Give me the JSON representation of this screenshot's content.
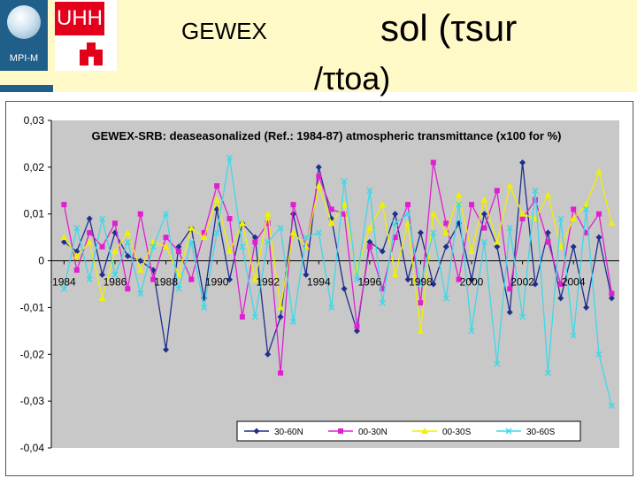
{
  "header": {
    "title": "GEWEX",
    "formula_line1": "sol (τsur",
    "formula_line2": "/τtoa)",
    "logo_left_label": "MPI-M",
    "logo_right_label": "UHH"
  },
  "chart_data": {
    "type": "line",
    "title": "GEWEX-SRB: deaseasonalized (Ref.: 1984-87) atmospheric transmittance (x100 for %)",
    "xlabel": "",
    "ylabel": "",
    "ylim": [
      -0.04,
      0.03
    ],
    "yticks": [
      "0,03",
      "0,02",
      "0,01",
      "0",
      "-0,01",
      "-0,02",
      "-0,03",
      "-0,04"
    ],
    "ytick_values": [
      0.03,
      0.02,
      0.01,
      0,
      -0.01,
      -0.02,
      -0.03,
      -0.04
    ],
    "xticks": [
      "1984",
      "1986",
      "1988",
      "1990",
      "1992",
      "1994",
      "1996",
      "1998",
      "2000",
      "2002",
      "2004"
    ],
    "xtick_values": [
      1984,
      1986,
      1988,
      1990,
      1992,
      1994,
      1996,
      1998,
      2000,
      2002,
      2004
    ],
    "xlim": [
      1983.5,
      2005.8
    ],
    "grid": false,
    "legend_position": "bottom",
    "series": [
      {
        "name": "30-60N",
        "color": "#1f2f8f",
        "marker": "diamond",
        "x": [
          1984.0,
          1984.5,
          1985.0,
          1985.5,
          1986.0,
          1986.5,
          1987.0,
          1987.5,
          1988.0,
          1988.5,
          1989.0,
          1989.5,
          1990.0,
          1990.5,
          1991.0,
          1991.5,
          1992.0,
          1992.5,
          1993.0,
          1993.5,
          1994.0,
          1994.5,
          1995.0,
          1995.5,
          1996.0,
          1996.5,
          1997.0,
          1997.5,
          1998.0,
          1998.5,
          1999.0,
          1999.5,
          2000.0,
          2000.5,
          2001.0,
          2001.5,
          2002.0,
          2002.5,
          2003.0,
          2003.5,
          2004.0,
          2004.5,
          2005.0,
          2005.5
        ],
        "y": [
          0.004,
          0.002,
          0.009,
          -0.003,
          0.006,
          0.001,
          0.0,
          -0.002,
          -0.019,
          0.003,
          0.007,
          -0.008,
          0.011,
          -0.004,
          0.008,
          0.005,
          -0.02,
          -0.012,
          0.01,
          -0.003,
          0.02,
          0.009,
          -0.006,
          -0.015,
          0.004,
          0.002,
          0.01,
          -0.004,
          0.006,
          -0.005,
          0.003,
          0.008,
          -0.004,
          0.01,
          0.003,
          -0.011,
          0.021,
          -0.005,
          0.006,
          -0.008,
          0.003,
          -0.01,
          0.005,
          -0.008
        ]
      },
      {
        "name": "00-30N",
        "color": "#e020d0",
        "marker": "square",
        "x": [
          1984.0,
          1984.5,
          1985.0,
          1985.5,
          1986.0,
          1986.5,
          1987.0,
          1987.5,
          1988.0,
          1988.5,
          1989.0,
          1989.5,
          1990.0,
          1990.5,
          1991.0,
          1991.5,
          1992.0,
          1992.5,
          1993.0,
          1993.5,
          1994.0,
          1994.5,
          1995.0,
          1995.5,
          1996.0,
          1996.5,
          1997.0,
          1997.5,
          1998.0,
          1998.5,
          1999.0,
          1999.5,
          2000.0,
          2000.5,
          2001.0,
          2001.5,
          2002.0,
          2002.5,
          2003.0,
          2003.5,
          2004.0,
          2004.5,
          2005.0,
          2005.5
        ],
        "y": [
          0.012,
          -0.002,
          0.006,
          0.003,
          0.008,
          -0.006,
          0.01,
          -0.004,
          0.005,
          0.002,
          -0.004,
          0.006,
          0.016,
          0.009,
          -0.012,
          0.004,
          0.008,
          -0.024,
          0.012,
          0.003,
          0.018,
          0.011,
          0.01,
          -0.014,
          0.003,
          -0.006,
          0.005,
          0.012,
          -0.009,
          0.021,
          0.008,
          -0.004,
          0.012,
          0.007,
          0.015,
          -0.006,
          0.009,
          0.013,
          0.004,
          -0.005,
          0.011,
          0.006,
          0.01,
          -0.007
        ]
      },
      {
        "name": "00-30S",
        "color": "#f0f000",
        "marker": "triangle",
        "x": [
          1984.0,
          1984.5,
          1985.0,
          1985.5,
          1986.0,
          1986.5,
          1987.0,
          1987.5,
          1988.0,
          1988.5,
          1989.0,
          1989.5,
          1990.0,
          1990.5,
          1991.0,
          1991.5,
          1992.0,
          1992.5,
          1993.0,
          1993.5,
          1994.0,
          1994.5,
          1995.0,
          1995.5,
          1996.0,
          1996.5,
          1997.0,
          1997.5,
          1998.0,
          1998.5,
          1999.0,
          1999.5,
          2000.0,
          2000.5,
          2001.0,
          2001.5,
          2002.0,
          2002.5,
          2003.0,
          2003.5,
          2004.0,
          2004.5,
          2005.0,
          2005.5
        ],
        "y": [
          0.005,
          0.001,
          0.004,
          -0.008,
          0.002,
          0.006,
          -0.002,
          0.004,
          0.003,
          -0.003,
          0.007,
          0.005,
          0.013,
          0.002,
          0.008,
          -0.004,
          0.01,
          -0.01,
          0.006,
          0.003,
          0.016,
          0.008,
          0.012,
          -0.002,
          0.007,
          0.012,
          -0.003,
          0.008,
          -0.015,
          0.01,
          0.006,
          0.014,
          0.002,
          0.013,
          0.004,
          0.016,
          0.01,
          0.009,
          0.014,
          0.003,
          0.009,
          0.012,
          0.019,
          0.008
        ]
      },
      {
        "name": "30-60S",
        "color": "#40d8e8",
        "marker": "cross",
        "x": [
          1984.0,
          1984.5,
          1985.0,
          1985.5,
          1986.0,
          1986.5,
          1987.0,
          1987.5,
          1988.0,
          1988.5,
          1989.0,
          1989.5,
          1990.0,
          1990.5,
          1991.0,
          1991.5,
          1992.0,
          1992.5,
          1993.0,
          1993.5,
          1994.0,
          1994.5,
          1995.0,
          1995.5,
          1996.0,
          1996.5,
          1997.0,
          1997.5,
          1998.0,
          1998.5,
          1999.0,
          1999.5,
          2000.0,
          2000.5,
          2001.0,
          2001.5,
          2002.0,
          2002.5,
          2003.0,
          2003.5,
          2004.0,
          2004.5,
          2005.0,
          2005.5
        ],
        "y": [
          -0.006,
          0.007,
          -0.004,
          0.009,
          -0.003,
          0.004,
          -0.007,
          0.003,
          0.01,
          -0.006,
          0.004,
          -0.01,
          0.006,
          0.022,
          0.003,
          -0.012,
          0.004,
          0.007,
          -0.013,
          0.005,
          0.006,
          -0.01,
          0.017,
          -0.004,
          0.015,
          -0.009,
          0.008,
          0.01,
          -0.005,
          0.006,
          -0.008,
          0.012,
          -0.015,
          0.004,
          -0.022,
          0.007,
          -0.012,
          0.015,
          -0.024,
          0.009,
          -0.016,
          0.011,
          -0.02,
          -0.031
        ]
      }
    ]
  }
}
